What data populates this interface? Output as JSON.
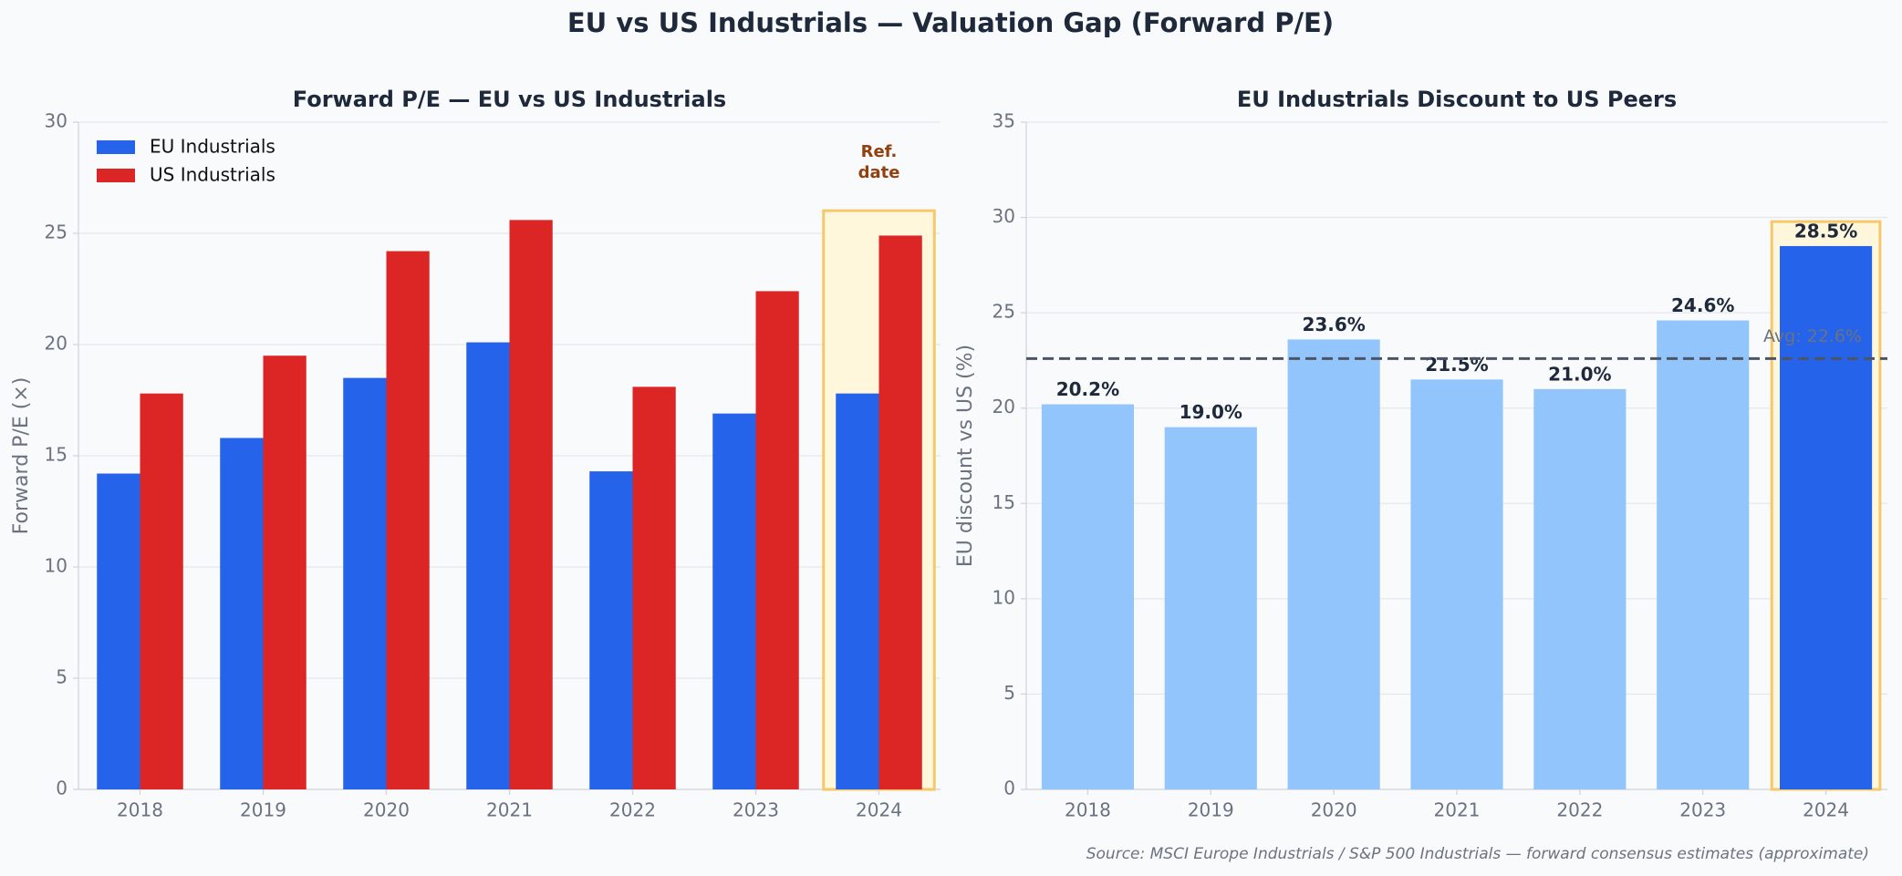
{
  "title": "EU vs US Industrials — Valuation Gap (Forward P/E)",
  "source": "Source: MSCI Europe Industrials / S&P 500 Industrials — forward consensus estimates (approximate)",
  "chart_data": [
    {
      "type": "bar",
      "title": "Forward P/E — EU vs US Industrials",
      "ylabel": "Forward P/E (×)",
      "categories": [
        "2018",
        "2019",
        "2020",
        "2021",
        "2022",
        "2023",
        "2024"
      ],
      "series": [
        {
          "name": "EU Industrials",
          "color": "#2563eb",
          "values": [
            14.2,
            15.8,
            18.5,
            20.1,
            14.3,
            16.9,
            17.8
          ]
        },
        {
          "name": "US Industrials",
          "color": "#dc2626",
          "values": [
            17.8,
            19.5,
            24.2,
            25.6,
            18.1,
            22.4,
            24.9
          ]
        }
      ],
      "ylim": [
        0,
        30
      ],
      "yticks": [
        0,
        5,
        10,
        15,
        20,
        25,
        30
      ],
      "grid": true,
      "legend": "upper left",
      "highlight": "2024",
      "annotation": [
        "Ref.",
        "date"
      ]
    },
    {
      "type": "bar",
      "title": "EU Industrials Discount to US Peers",
      "ylabel": "EU discount vs US (%)",
      "categories": [
        "2018",
        "2019",
        "2020",
        "2021",
        "2022",
        "2023",
        "2024"
      ],
      "values": [
        20.2,
        19.0,
        23.6,
        21.5,
        21.0,
        24.6,
        28.5
      ],
      "value_labels": [
        "20.2%",
        "19.0%",
        "23.6%",
        "21.5%",
        "21.0%",
        "24.6%",
        "28.5%"
      ],
      "colors": [
        "#93c5fd",
        "#93c5fd",
        "#93c5fd",
        "#93c5fd",
        "#93c5fd",
        "#93c5fd",
        "#2563eb"
      ],
      "average": {
        "value": 22.6,
        "label": "Avg: 22.6%"
      },
      "ylim": [
        0,
        35
      ],
      "yticks": [
        0,
        5,
        10,
        15,
        20,
        25,
        30,
        35
      ],
      "grid": true,
      "highlight": "2024"
    }
  ]
}
